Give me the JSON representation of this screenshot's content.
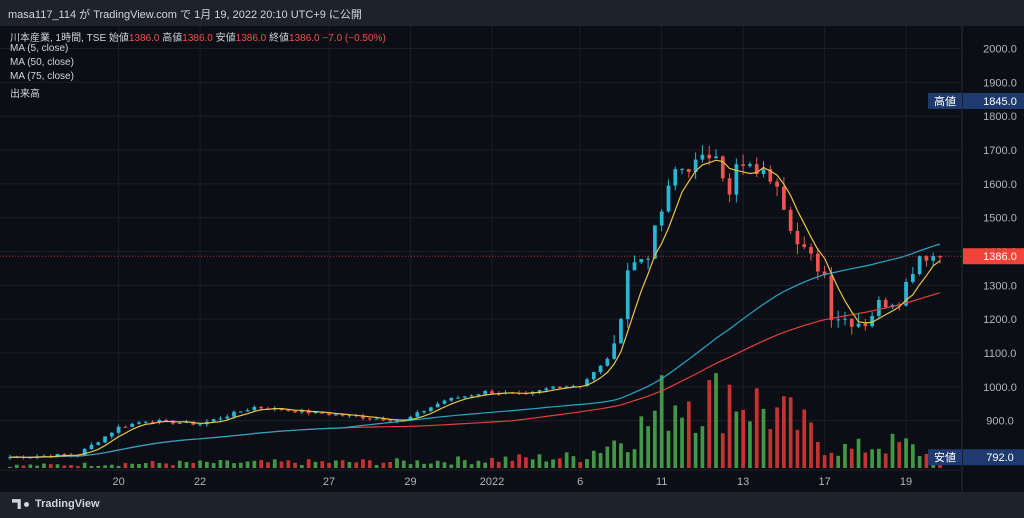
{
  "header": {
    "publish_line": "masa117_114 が TradingView.com で 1月 19, 2022 20:10 UTC+9 に公開"
  },
  "legend": {
    "symbol": "川本産業, 1時間, TSE",
    "open_label": "始値",
    "open_value": "1386.0",
    "high_label": "高値",
    "high_value": "1386.0",
    "low_label": "安値",
    "low_value": "1386.0",
    "close_label": "終値",
    "close_value": "1386.0",
    "change": "−7.0 (−0.50%)",
    "ma5": "MA (5, close)",
    "ma50": "MA (50, close)",
    "ma75": "MA (75, close)",
    "volume": "出来高"
  },
  "footer": {
    "brand": "TradingView"
  },
  "colors": {
    "up": "#26a69a",
    "up_candle": "#29b6d6",
    "down": "#ef5350",
    "volume_up": "#4caf50",
    "volume_down": "#e53935",
    "ma5": "#e8c547",
    "ma50": "#26a6c7",
    "ma75": "#e0413a",
    "high_badge": "#1e3a6e",
    "price_badge": "#f0443a"
  },
  "chart_data": {
    "type": "candlestick",
    "y_axis": {
      "range": [
        760,
        2040
      ],
      "ticks": [
        "2000.0",
        "1900.0",
        "1800.0",
        "1700.0",
        "1600.0",
        "1500.0",
        "1400.0",
        "1300.0",
        "1200.0",
        "1100.0",
        "1000.0",
        "900.0"
      ]
    },
    "x_axis": {
      "ticks": [
        {
          "label": "20",
          "index": 16
        },
        {
          "label": "22",
          "index": 28
        },
        {
          "label": "27",
          "index": 47
        },
        {
          "label": "29",
          "index": 59
        },
        {
          "label": "2022",
          "index": 71
        },
        {
          "label": "6",
          "index": 84
        },
        {
          "label": "11",
          "index": 96
        },
        {
          "label": "13",
          "index": 108
        },
        {
          "label": "17",
          "index": 120
        },
        {
          "label": "19",
          "index": 132
        }
      ],
      "bar_count": 138
    },
    "markers": [
      {
        "label": "高値",
        "value": "1845.0",
        "price": 1845
      },
      {
        "label": "",
        "value": "1386.0",
        "price": 1386
      },
      {
        "label": "安値",
        "value": "792.0",
        "price": 792
      }
    ],
    "price_keyframes": [
      [
        0,
        792
      ],
      [
        10,
        800
      ],
      [
        16,
        880
      ],
      [
        20,
        900
      ],
      [
        28,
        890
      ],
      [
        36,
        940
      ],
      [
        44,
        925
      ],
      [
        52,
        910
      ],
      [
        58,
        900
      ],
      [
        64,
        960
      ],
      [
        70,
        985
      ],
      [
        76,
        975
      ],
      [
        80,
        1000
      ],
      [
        84,
        1005
      ],
      [
        87,
        1060
      ],
      [
        89,
        1110
      ],
      [
        90,
        1220
      ],
      [
        91,
        1350
      ],
      [
        94,
        1395
      ],
      [
        96,
        1520
      ],
      [
        98,
        1640
      ],
      [
        100,
        1650
      ],
      [
        102,
        1670
      ],
      [
        104,
        1700
      ],
      [
        106,
        1560
      ],
      [
        107,
        1650
      ],
      [
        110,
        1640
      ],
      [
        113,
        1610
      ],
      [
        114,
        1540
      ],
      [
        116,
        1420
      ],
      [
        118,
        1380
      ],
      [
        120,
        1330
      ],
      [
        121,
        1215
      ],
      [
        124,
        1195
      ],
      [
        126,
        1190
      ],
      [
        128,
        1245
      ],
      [
        131,
        1260
      ],
      [
        133,
        1350
      ],
      [
        134,
        1390
      ],
      [
        137,
        1386
      ]
    ],
    "volume_keyframes": [
      [
        0,
        3
      ],
      [
        20,
        6
      ],
      [
        60,
        8
      ],
      [
        84,
        14
      ],
      [
        88,
        30
      ],
      [
        90,
        38
      ],
      [
        94,
        55
      ],
      [
        96,
        80
      ],
      [
        100,
        95
      ],
      [
        104,
        85
      ],
      [
        106,
        100
      ],
      [
        108,
        88
      ],
      [
        112,
        70
      ],
      [
        116,
        55
      ],
      [
        120,
        30
      ],
      [
        124,
        22
      ],
      [
        128,
        30
      ],
      [
        132,
        28
      ],
      [
        137,
        8
      ]
    ],
    "volume_max": 110
  }
}
